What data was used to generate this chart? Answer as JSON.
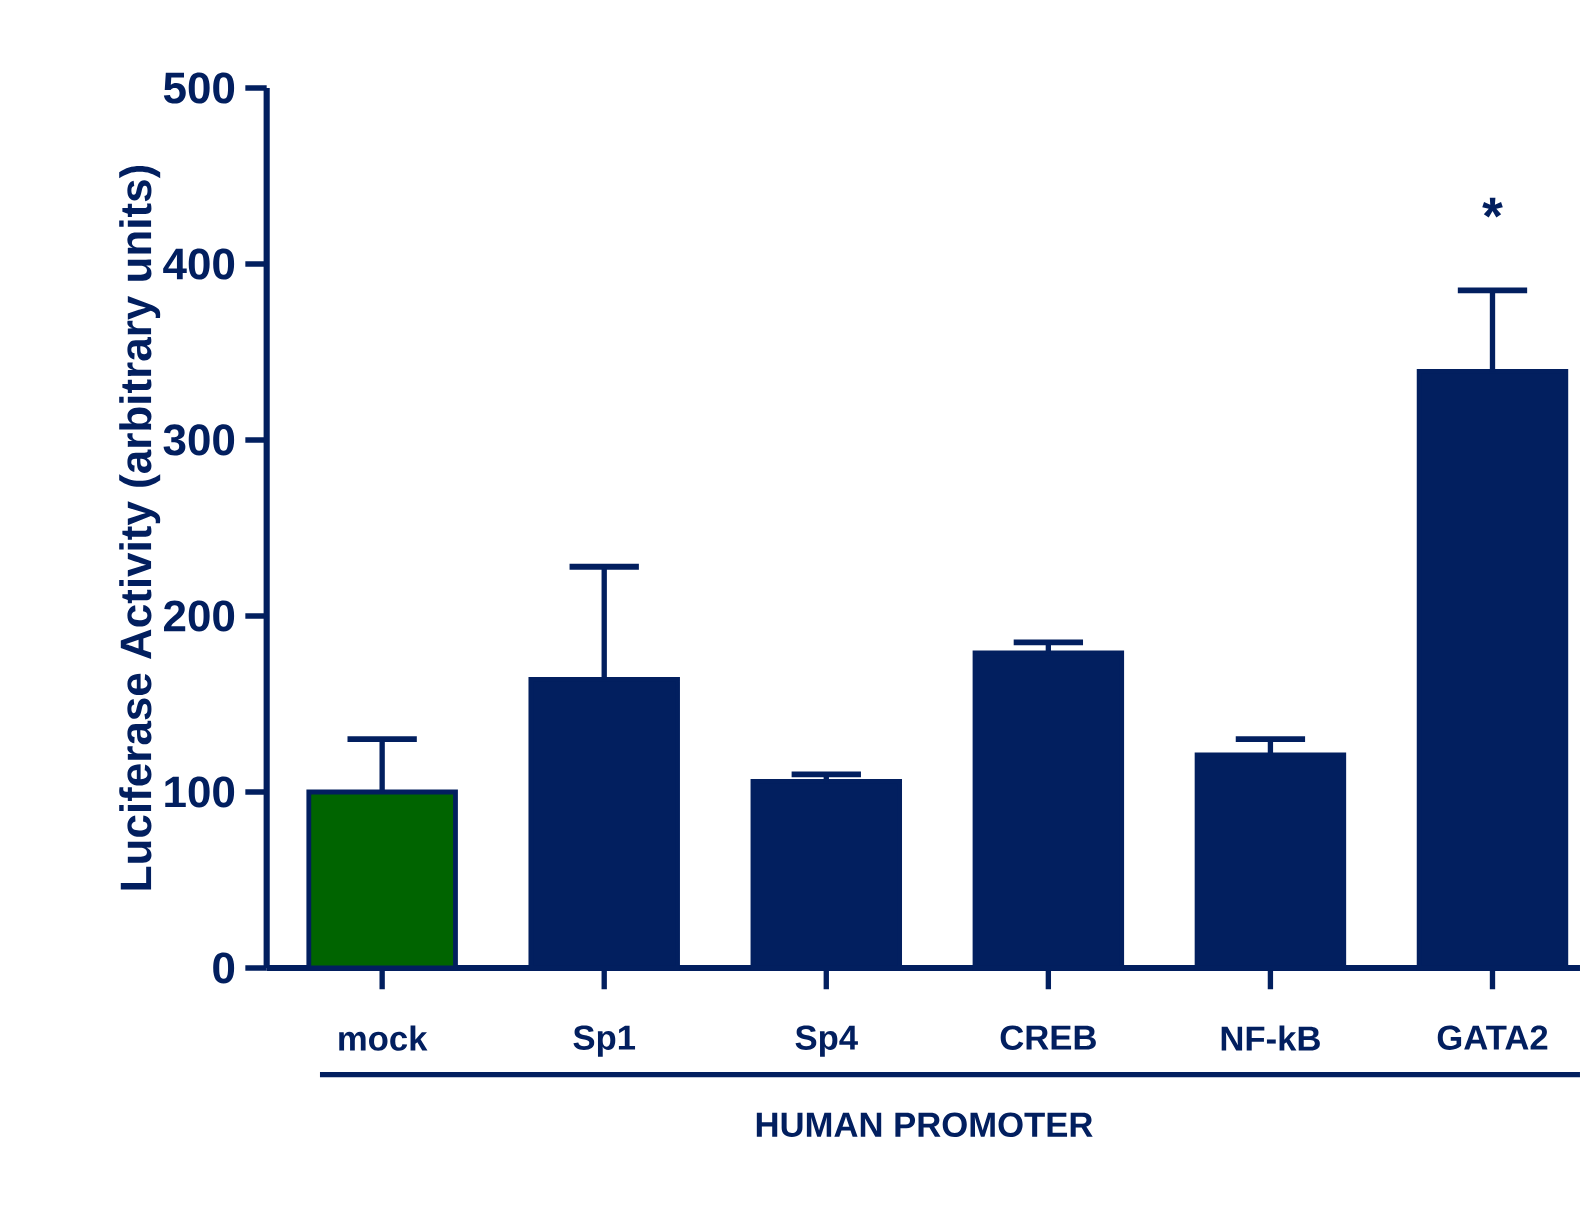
{
  "chart_data": {
    "type": "bar",
    "xlabel": "HUMAN PROMOTER",
    "ylabel": "Luciferase Activity (arbitrary units)",
    "categories": [
      "mock",
      "Sp1",
      "Sp4",
      "CREB",
      "NF-kB",
      "GATA2"
    ],
    "values": [
      100,
      164,
      106,
      179,
      121,
      339
    ],
    "errors": [
      30,
      64,
      4,
      6,
      9,
      46
    ],
    "colors": [
      "#006400",
      "#021f5f",
      "#021f5f",
      "#021f5f",
      "#021f5f",
      "#021f5f"
    ],
    "ylim": [
      0,
      500
    ],
    "yticks": [
      0,
      100,
      200,
      300,
      400,
      500
    ],
    "grid": false,
    "annotations": [
      "*"
    ]
  }
}
